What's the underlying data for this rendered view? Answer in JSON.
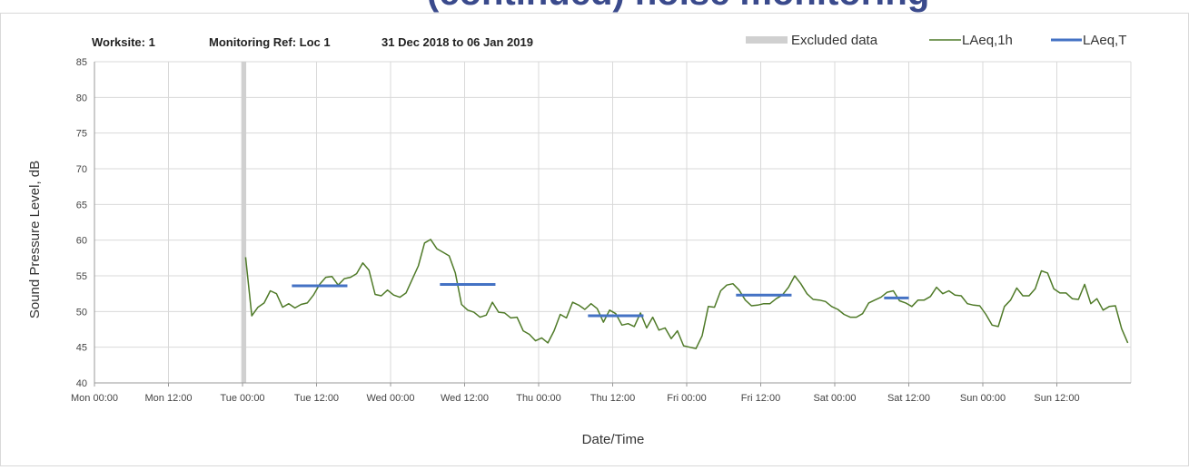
{
  "page_title_fragment": "(continued) noise monitoring",
  "chart_data": {
    "type": "line",
    "header": {
      "worksite": "Worksite: 1",
      "monitoring_ref": "Monitoring Ref: Loc 1",
      "date_range": "31 Dec 2018 to 06 Jan 2019"
    },
    "xlabel": "Date/Time",
    "ylabel": "Sound Pressure Level, dB",
    "xlim": [
      0,
      168
    ],
    "ylim": [
      40,
      85
    ],
    "y_ticks": [
      40,
      45,
      50,
      55,
      60,
      65,
      70,
      75,
      80,
      85
    ],
    "x_ticks": [
      {
        "h": 0,
        "label": "Mon 00:00"
      },
      {
        "h": 12,
        "label": "Mon 12:00"
      },
      {
        "h": 24,
        "label": "Tue 00:00"
      },
      {
        "h": 36,
        "label": "Tue 12:00"
      },
      {
        "h": 48,
        "label": "Wed 00:00"
      },
      {
        "h": 60,
        "label": "Wed 12:00"
      },
      {
        "h": 72,
        "label": "Thu 00:00"
      },
      {
        "h": 84,
        "label": "Thu 12:00"
      },
      {
        "h": 96,
        "label": "Fri 00:00"
      },
      {
        "h": 108,
        "label": "Fri 12:00"
      },
      {
        "h": 120,
        "label": "Sat 00:00"
      },
      {
        "h": 132,
        "label": "Sat 12:00"
      },
      {
        "h": 144,
        "label": "Sun 00:00"
      },
      {
        "h": 156,
        "label": "Sun 12:00"
      }
    ],
    "grid": true,
    "legend_position": "top-right",
    "legend": [
      "Excluded data",
      "LAeq,1h",
      "LAeq,T"
    ],
    "colors": {
      "excluded": "#d0d0d0",
      "laeq_1h": "#4f7a28",
      "laeq_t": "#4472c4",
      "grid": "#d9d9d9"
    },
    "excluded": [
      {
        "x_start": 23.8,
        "x_end": 24.6
      }
    ],
    "series": [
      {
        "name": "LAeq,1h",
        "points": [
          [
            24.5,
            57.6
          ],
          [
            25.5,
            49.4
          ],
          [
            26.5,
            50.6
          ],
          [
            27.5,
            51.2
          ],
          [
            28.5,
            52.9
          ],
          [
            29.5,
            52.5
          ],
          [
            30.5,
            50.6
          ],
          [
            31.5,
            51.1
          ],
          [
            32.5,
            50.5
          ],
          [
            33.5,
            51.0
          ],
          [
            34.5,
            51.2
          ],
          [
            35.5,
            52.3
          ],
          [
            36.5,
            53.8
          ],
          [
            37.5,
            54.8
          ],
          [
            38.5,
            54.9
          ],
          [
            39.5,
            53.7
          ],
          [
            40.5,
            54.6
          ],
          [
            41.5,
            54.8
          ],
          [
            42.5,
            55.3
          ],
          [
            43.5,
            56.8
          ],
          [
            44.5,
            55.8
          ],
          [
            45.5,
            52.4
          ],
          [
            46.5,
            52.2
          ],
          [
            47.5,
            53.0
          ],
          [
            48.5,
            52.3
          ],
          [
            49.5,
            52.0
          ],
          [
            50.5,
            52.6
          ],
          [
            51.5,
            54.5
          ],
          [
            52.5,
            56.4
          ],
          [
            53.5,
            59.6
          ],
          [
            54.5,
            60.1
          ],
          [
            55.5,
            58.8
          ],
          [
            56.5,
            58.3
          ],
          [
            57.5,
            57.8
          ],
          [
            58.5,
            55.4
          ],
          [
            59.5,
            51.0
          ],
          [
            60.5,
            50.2
          ],
          [
            61.5,
            49.9
          ],
          [
            62.5,
            49.2
          ],
          [
            63.5,
            49.5
          ],
          [
            64.5,
            51.3
          ],
          [
            65.5,
            49.9
          ],
          [
            66.5,
            49.8
          ],
          [
            67.5,
            49.1
          ],
          [
            68.5,
            49.2
          ],
          [
            69.5,
            47.3
          ],
          [
            70.5,
            46.8
          ],
          [
            71.5,
            45.9
          ],
          [
            72.5,
            46.3
          ],
          [
            73.5,
            45.6
          ],
          [
            74.5,
            47.3
          ],
          [
            75.5,
            49.6
          ],
          [
            76.5,
            49.1
          ],
          [
            77.5,
            51.3
          ],
          [
            78.5,
            50.9
          ],
          [
            79.5,
            50.3
          ],
          [
            80.5,
            51.1
          ],
          [
            81.5,
            50.4
          ],
          [
            82.5,
            48.5
          ],
          [
            83.5,
            50.2
          ],
          [
            84.5,
            49.7
          ],
          [
            85.5,
            48.1
          ],
          [
            86.5,
            48.3
          ],
          [
            87.5,
            47.9
          ],
          [
            88.5,
            49.8
          ],
          [
            89.5,
            47.7
          ],
          [
            90.5,
            49.2
          ],
          [
            91.5,
            47.4
          ],
          [
            92.5,
            47.7
          ],
          [
            93.5,
            46.2
          ],
          [
            94.5,
            47.3
          ],
          [
            95.5,
            45.2
          ],
          [
            96.5,
            45.0
          ],
          [
            97.5,
            44.8
          ],
          [
            98.5,
            46.6
          ],
          [
            99.5,
            50.7
          ],
          [
            100.5,
            50.6
          ],
          [
            101.5,
            52.9
          ],
          [
            102.5,
            53.7
          ],
          [
            103.5,
            53.9
          ],
          [
            104.5,
            53.0
          ],
          [
            105.5,
            51.6
          ],
          [
            106.5,
            50.8
          ],
          [
            107.5,
            50.9
          ],
          [
            108.5,
            51.1
          ],
          [
            109.5,
            51.1
          ],
          [
            110.5,
            51.8
          ],
          [
            111.5,
            52.3
          ],
          [
            112.5,
            53.4
          ],
          [
            113.5,
            55.0
          ],
          [
            114.5,
            53.9
          ],
          [
            115.5,
            52.5
          ],
          [
            116.5,
            51.7
          ],
          [
            117.5,
            51.6
          ],
          [
            118.5,
            51.4
          ],
          [
            119.5,
            50.7
          ],
          [
            120.5,
            50.3
          ],
          [
            121.5,
            49.6
          ],
          [
            122.5,
            49.2
          ],
          [
            123.5,
            49.2
          ],
          [
            124.5,
            49.7
          ],
          [
            125.5,
            51.2
          ],
          [
            126.5,
            51.6
          ],
          [
            127.5,
            52.0
          ],
          [
            128.5,
            52.7
          ],
          [
            129.5,
            52.9
          ],
          [
            130.5,
            51.5
          ],
          [
            131.5,
            51.2
          ],
          [
            132.5,
            50.7
          ],
          [
            133.5,
            51.6
          ],
          [
            134.5,
            51.6
          ],
          [
            135.5,
            52.1
          ],
          [
            136.5,
            53.4
          ],
          [
            137.5,
            52.5
          ],
          [
            138.5,
            52.9
          ],
          [
            139.5,
            52.3
          ],
          [
            140.5,
            52.2
          ],
          [
            141.5,
            51.1
          ],
          [
            142.5,
            50.9
          ],
          [
            143.5,
            50.8
          ],
          [
            144.5,
            49.6
          ],
          [
            145.5,
            48.1
          ],
          [
            146.5,
            47.9
          ],
          [
            147.5,
            50.7
          ],
          [
            148.5,
            51.6
          ],
          [
            149.5,
            53.3
          ],
          [
            150.5,
            52.2
          ],
          [
            151.5,
            52.2
          ],
          [
            152.5,
            53.2
          ],
          [
            153.5,
            55.7
          ],
          [
            154.5,
            55.4
          ],
          [
            155.5,
            53.2
          ],
          [
            156.5,
            52.6
          ],
          [
            157.5,
            52.6
          ],
          [
            158.5,
            51.8
          ],
          [
            159.5,
            51.7
          ],
          [
            160.5,
            53.8
          ],
          [
            161.5,
            51.1
          ],
          [
            162.5,
            51.8
          ],
          [
            163.5,
            50.2
          ],
          [
            164.5,
            50.7
          ],
          [
            165.5,
            50.8
          ],
          [
            166.5,
            47.6
          ],
          [
            167.5,
            45.6
          ]
        ]
      },
      {
        "name": "LAeq,T",
        "segments": [
          {
            "x_start": 32.0,
            "x_end": 41.0,
            "y": 53.6
          },
          {
            "x_start": 56.0,
            "x_end": 65.0,
            "y": 53.8
          },
          {
            "x_start": 80.0,
            "x_end": 89.0,
            "y": 49.4
          },
          {
            "x_start": 104.0,
            "x_end": 113.0,
            "y": 52.3
          },
          {
            "x_start": 128.0,
            "x_end": 132.0,
            "y": 51.9
          }
        ]
      }
    ]
  }
}
